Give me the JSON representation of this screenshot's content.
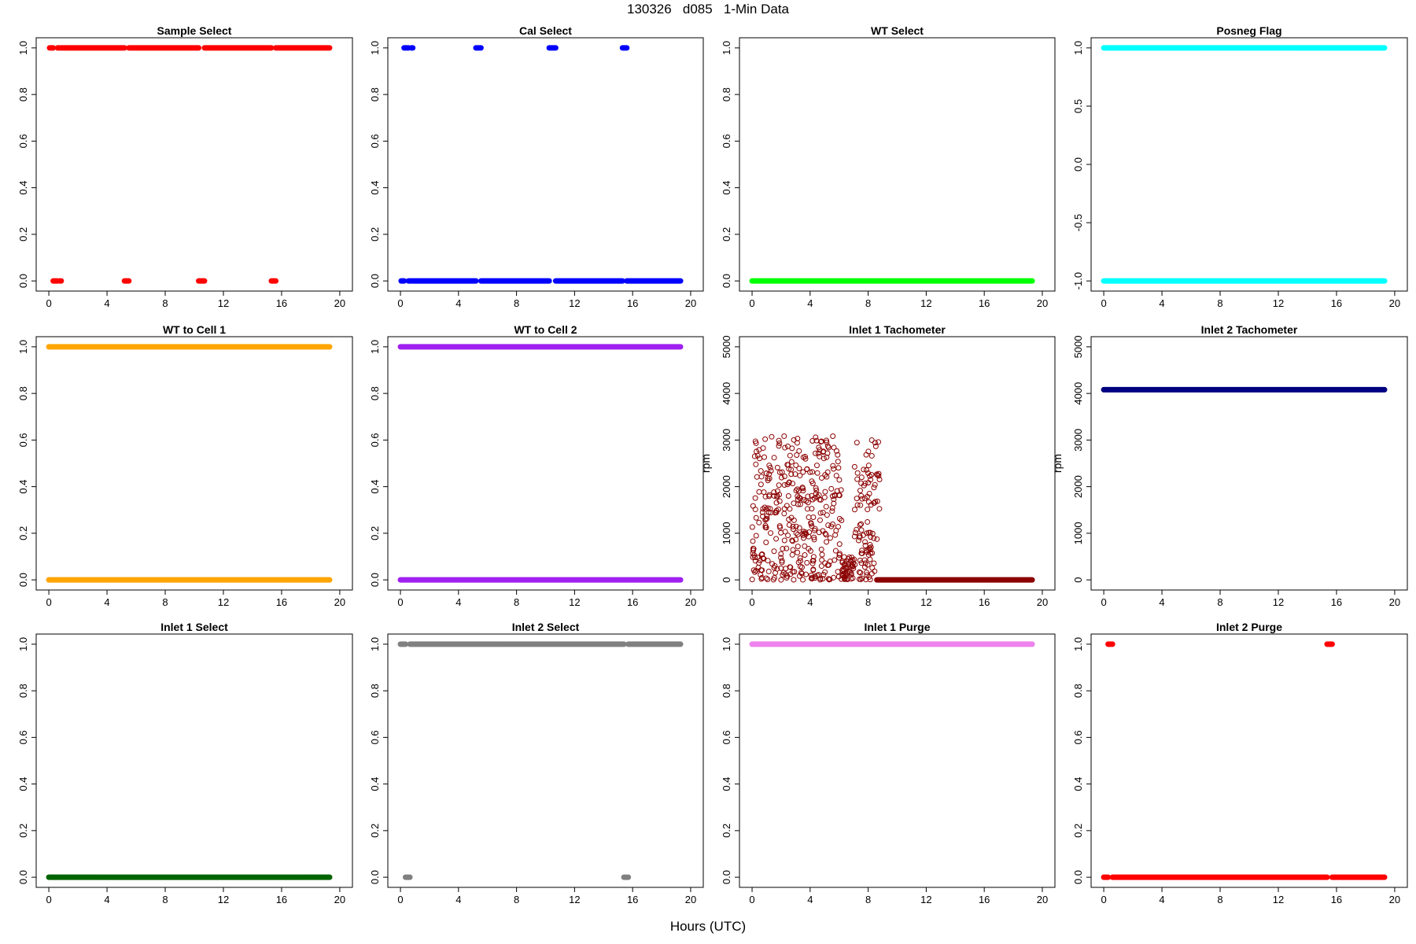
{
  "header": {
    "title": "130326   d085   1-Min Data"
  },
  "xaxis_label": "Hours (UTC)",
  "chart_data": [
    {
      "type": "scatter",
      "title": "Sample Select",
      "color": "#ff0000",
      "xlim": [
        0,
        20
      ],
      "ylim": [
        0,
        1
      ],
      "xticks": [
        0,
        4,
        8,
        12,
        16,
        20
      ],
      "yticks": [
        "0.0",
        "0.2",
        "0.4",
        "0.6",
        "0.8",
        "1.0"
      ],
      "ylabel": "",
      "segments": [
        {
          "x": [
            0.05,
            0.3
          ],
          "y": 1
        },
        {
          "x": [
            0.6,
            0.7
          ],
          "y": 1
        },
        {
          "x": [
            0.8,
            5.2
          ],
          "y": 1
        },
        {
          "x": [
            5.5,
            10.3
          ],
          "y": 1
        },
        {
          "x": [
            10.7,
            15.3
          ],
          "y": 1
        },
        {
          "x": [
            15.6,
            19.3
          ],
          "y": 1
        },
        {
          "x": [
            0.3,
            0.6
          ],
          "y": 0
        },
        {
          "x": [
            0.75,
            0.85
          ],
          "y": 0
        },
        {
          "x": [
            5.2,
            5.5
          ],
          "y": 0
        },
        {
          "x": [
            10.3,
            10.7
          ],
          "y": 0
        },
        {
          "x": [
            15.3,
            15.6
          ],
          "y": 0
        }
      ]
    },
    {
      "type": "scatter",
      "title": "Cal Select",
      "color": "#0000ff",
      "xlim": [
        0,
        20
      ],
      "ylim": [
        0,
        1
      ],
      "xticks": [
        0,
        4,
        8,
        12,
        16,
        20
      ],
      "yticks": [
        "0.0",
        "0.2",
        "0.4",
        "0.6",
        "0.8",
        "1.0"
      ],
      "ylabel": "",
      "segments": [
        {
          "x": [
            0.25,
            0.55
          ],
          "y": 1
        },
        {
          "x": [
            0.75,
            0.85
          ],
          "y": 1
        },
        {
          "x": [
            5.2,
            5.55
          ],
          "y": 1
        },
        {
          "x": [
            10.25,
            10.7
          ],
          "y": 1
        },
        {
          "x": [
            15.3,
            15.6
          ],
          "y": 1
        },
        {
          "x": [
            0.05,
            0.25
          ],
          "y": 0
        },
        {
          "x": [
            0.55,
            0.75
          ],
          "y": 0
        },
        {
          "x": [
            0.85,
            5.2
          ],
          "y": 0
        },
        {
          "x": [
            5.55,
            10.25
          ],
          "y": 0
        },
        {
          "x": [
            10.7,
            15.3
          ],
          "y": 0
        },
        {
          "x": [
            15.6,
            19.3
          ],
          "y": 0
        }
      ]
    },
    {
      "type": "scatter",
      "title": "WT Select",
      "color": "#00ff00",
      "xlim": [
        0,
        20
      ],
      "ylim": [
        0,
        1
      ],
      "xticks": [
        0,
        4,
        8,
        12,
        16,
        20
      ],
      "yticks": [
        "0.0",
        "0.2",
        "0.4",
        "0.6",
        "0.8",
        "1.0"
      ],
      "ylabel": "",
      "segments": [
        {
          "x": [
            0.0,
            19.3
          ],
          "y": 0
        }
      ]
    },
    {
      "type": "scatter",
      "title": "Posneg Flag",
      "color": "#00ffff",
      "xlim": [
        0,
        20
      ],
      "ylim": [
        -1,
        1
      ],
      "xticks": [
        0,
        4,
        8,
        12,
        16,
        20
      ],
      "yticks": [
        "-1.0",
        "-0.5",
        "0.0",
        "0.5",
        "1.0"
      ],
      "ylabel": "",
      "segments": [
        {
          "x": [
            0.0,
            19.3
          ],
          "y": 1
        },
        {
          "x": [
            0.0,
            19.3
          ],
          "y": -1
        }
      ]
    },
    {
      "type": "scatter",
      "title": "WT to Cell 1",
      "color": "#ffa500",
      "xlim": [
        0,
        20
      ],
      "ylim": [
        0,
        1
      ],
      "xticks": [
        0,
        4,
        8,
        12,
        16,
        20
      ],
      "yticks": [
        "0.0",
        "0.2",
        "0.4",
        "0.6",
        "0.8",
        "1.0"
      ],
      "ylabel": "",
      "segments": [
        {
          "x": [
            0.0,
            19.3
          ],
          "y": 1
        },
        {
          "x": [
            0.0,
            19.3
          ],
          "y": 0
        }
      ]
    },
    {
      "type": "scatter",
      "title": "WT to Cell 2",
      "color": "#a020f0",
      "xlim": [
        0,
        20
      ],
      "ylim": [
        0,
        1
      ],
      "xticks": [
        0,
        4,
        8,
        12,
        16,
        20
      ],
      "yticks": [
        "0.0",
        "0.2",
        "0.4",
        "0.6",
        "0.8",
        "1.0"
      ],
      "ylabel": "",
      "segments": [
        {
          "x": [
            0.0,
            19.3
          ],
          "y": 1
        },
        {
          "x": [
            0.0,
            19.3
          ],
          "y": 0
        }
      ]
    },
    {
      "type": "scatter",
      "title": "Inlet 1 Tachometer",
      "color": "#8b0000",
      "xlim": [
        0,
        20
      ],
      "ylim": [
        0,
        5000
      ],
      "xticks": [
        0,
        4,
        8,
        12,
        16,
        20
      ],
      "yticks": [
        "0",
        "1000",
        "2000",
        "3000",
        "4000",
        "5000"
      ],
      "ylabel": "rpm",
      "scatter": {
        "x_range": [
          0.0,
          8.8
        ],
        "y_range": [
          0,
          3100
        ],
        "count": 520,
        "marker": "open-circle"
      },
      "segments": [
        {
          "x": [
            8.6,
            19.3
          ],
          "y": 0
        }
      ]
    },
    {
      "type": "scatter",
      "title": "Inlet 2 Tachometer",
      "color": "#000080",
      "xlim": [
        0,
        20
      ],
      "ylim": [
        0,
        5000
      ],
      "xticks": [
        0,
        4,
        8,
        12,
        16,
        20
      ],
      "yticks": [
        "0",
        "1000",
        "2000",
        "3000",
        "4000",
        "5000"
      ],
      "ylabel": "rpm",
      "segments": [
        {
          "x": [
            0.0,
            19.3
          ],
          "y": 4080
        }
      ]
    },
    {
      "type": "scatter",
      "title": "Inlet 1 Select",
      "color": "#006400",
      "xlim": [
        0,
        20
      ],
      "ylim": [
        0,
        1
      ],
      "xticks": [
        0,
        4,
        8,
        12,
        16,
        20
      ],
      "yticks": [
        "0.0",
        "0.2",
        "0.4",
        "0.6",
        "0.8",
        "1.0"
      ],
      "ylabel": "",
      "segments": [
        {
          "x": [
            0.0,
            19.3
          ],
          "y": 0
        }
      ]
    },
    {
      "type": "scatter",
      "title": "Inlet 2 Select",
      "color": "#808080",
      "xlim": [
        0,
        20
      ],
      "ylim": [
        0,
        1
      ],
      "xticks": [
        0,
        4,
        8,
        12,
        16,
        20
      ],
      "yticks": [
        "0.0",
        "0.2",
        "0.4",
        "0.6",
        "0.8",
        "1.0"
      ],
      "ylabel": "",
      "segments": [
        {
          "x": [
            0.0,
            0.35
          ],
          "y": 1
        },
        {
          "x": [
            0.65,
            15.4
          ],
          "y": 1
        },
        {
          "x": [
            15.7,
            19.3
          ],
          "y": 1
        },
        {
          "x": [
            0.35,
            0.65
          ],
          "y": 0
        },
        {
          "x": [
            15.4,
            15.7
          ],
          "y": 0
        }
      ]
    },
    {
      "type": "scatter",
      "title": "Inlet 1 Purge",
      "color": "#ee82ee",
      "xlim": [
        0,
        20
      ],
      "ylim": [
        0,
        1
      ],
      "xticks": [
        0,
        4,
        8,
        12,
        16,
        20
      ],
      "yticks": [
        "0.0",
        "0.2",
        "0.4",
        "0.6",
        "0.8",
        "1.0"
      ],
      "ylabel": "",
      "segments": [
        {
          "x": [
            0.0,
            19.3
          ],
          "y": 1
        }
      ]
    },
    {
      "type": "scatter",
      "title": "Inlet 2 Purge",
      "color": "#ff0000",
      "xlim": [
        0,
        20
      ],
      "ylim": [
        0,
        1
      ],
      "xticks": [
        0,
        4,
        8,
        12,
        16,
        20
      ],
      "yticks": [
        "0.0",
        "0.2",
        "0.4",
        "0.6",
        "0.8",
        "1.0"
      ],
      "ylabel": "",
      "segments": [
        {
          "x": [
            0.3,
            0.6
          ],
          "y": 1
        },
        {
          "x": [
            15.35,
            15.7
          ],
          "y": 1
        },
        {
          "x": [
            0.0,
            0.3
          ],
          "y": 0
        },
        {
          "x": [
            0.6,
            15.35
          ],
          "y": 0
        },
        {
          "x": [
            15.7,
            19.3
          ],
          "y": 0
        }
      ]
    }
  ]
}
